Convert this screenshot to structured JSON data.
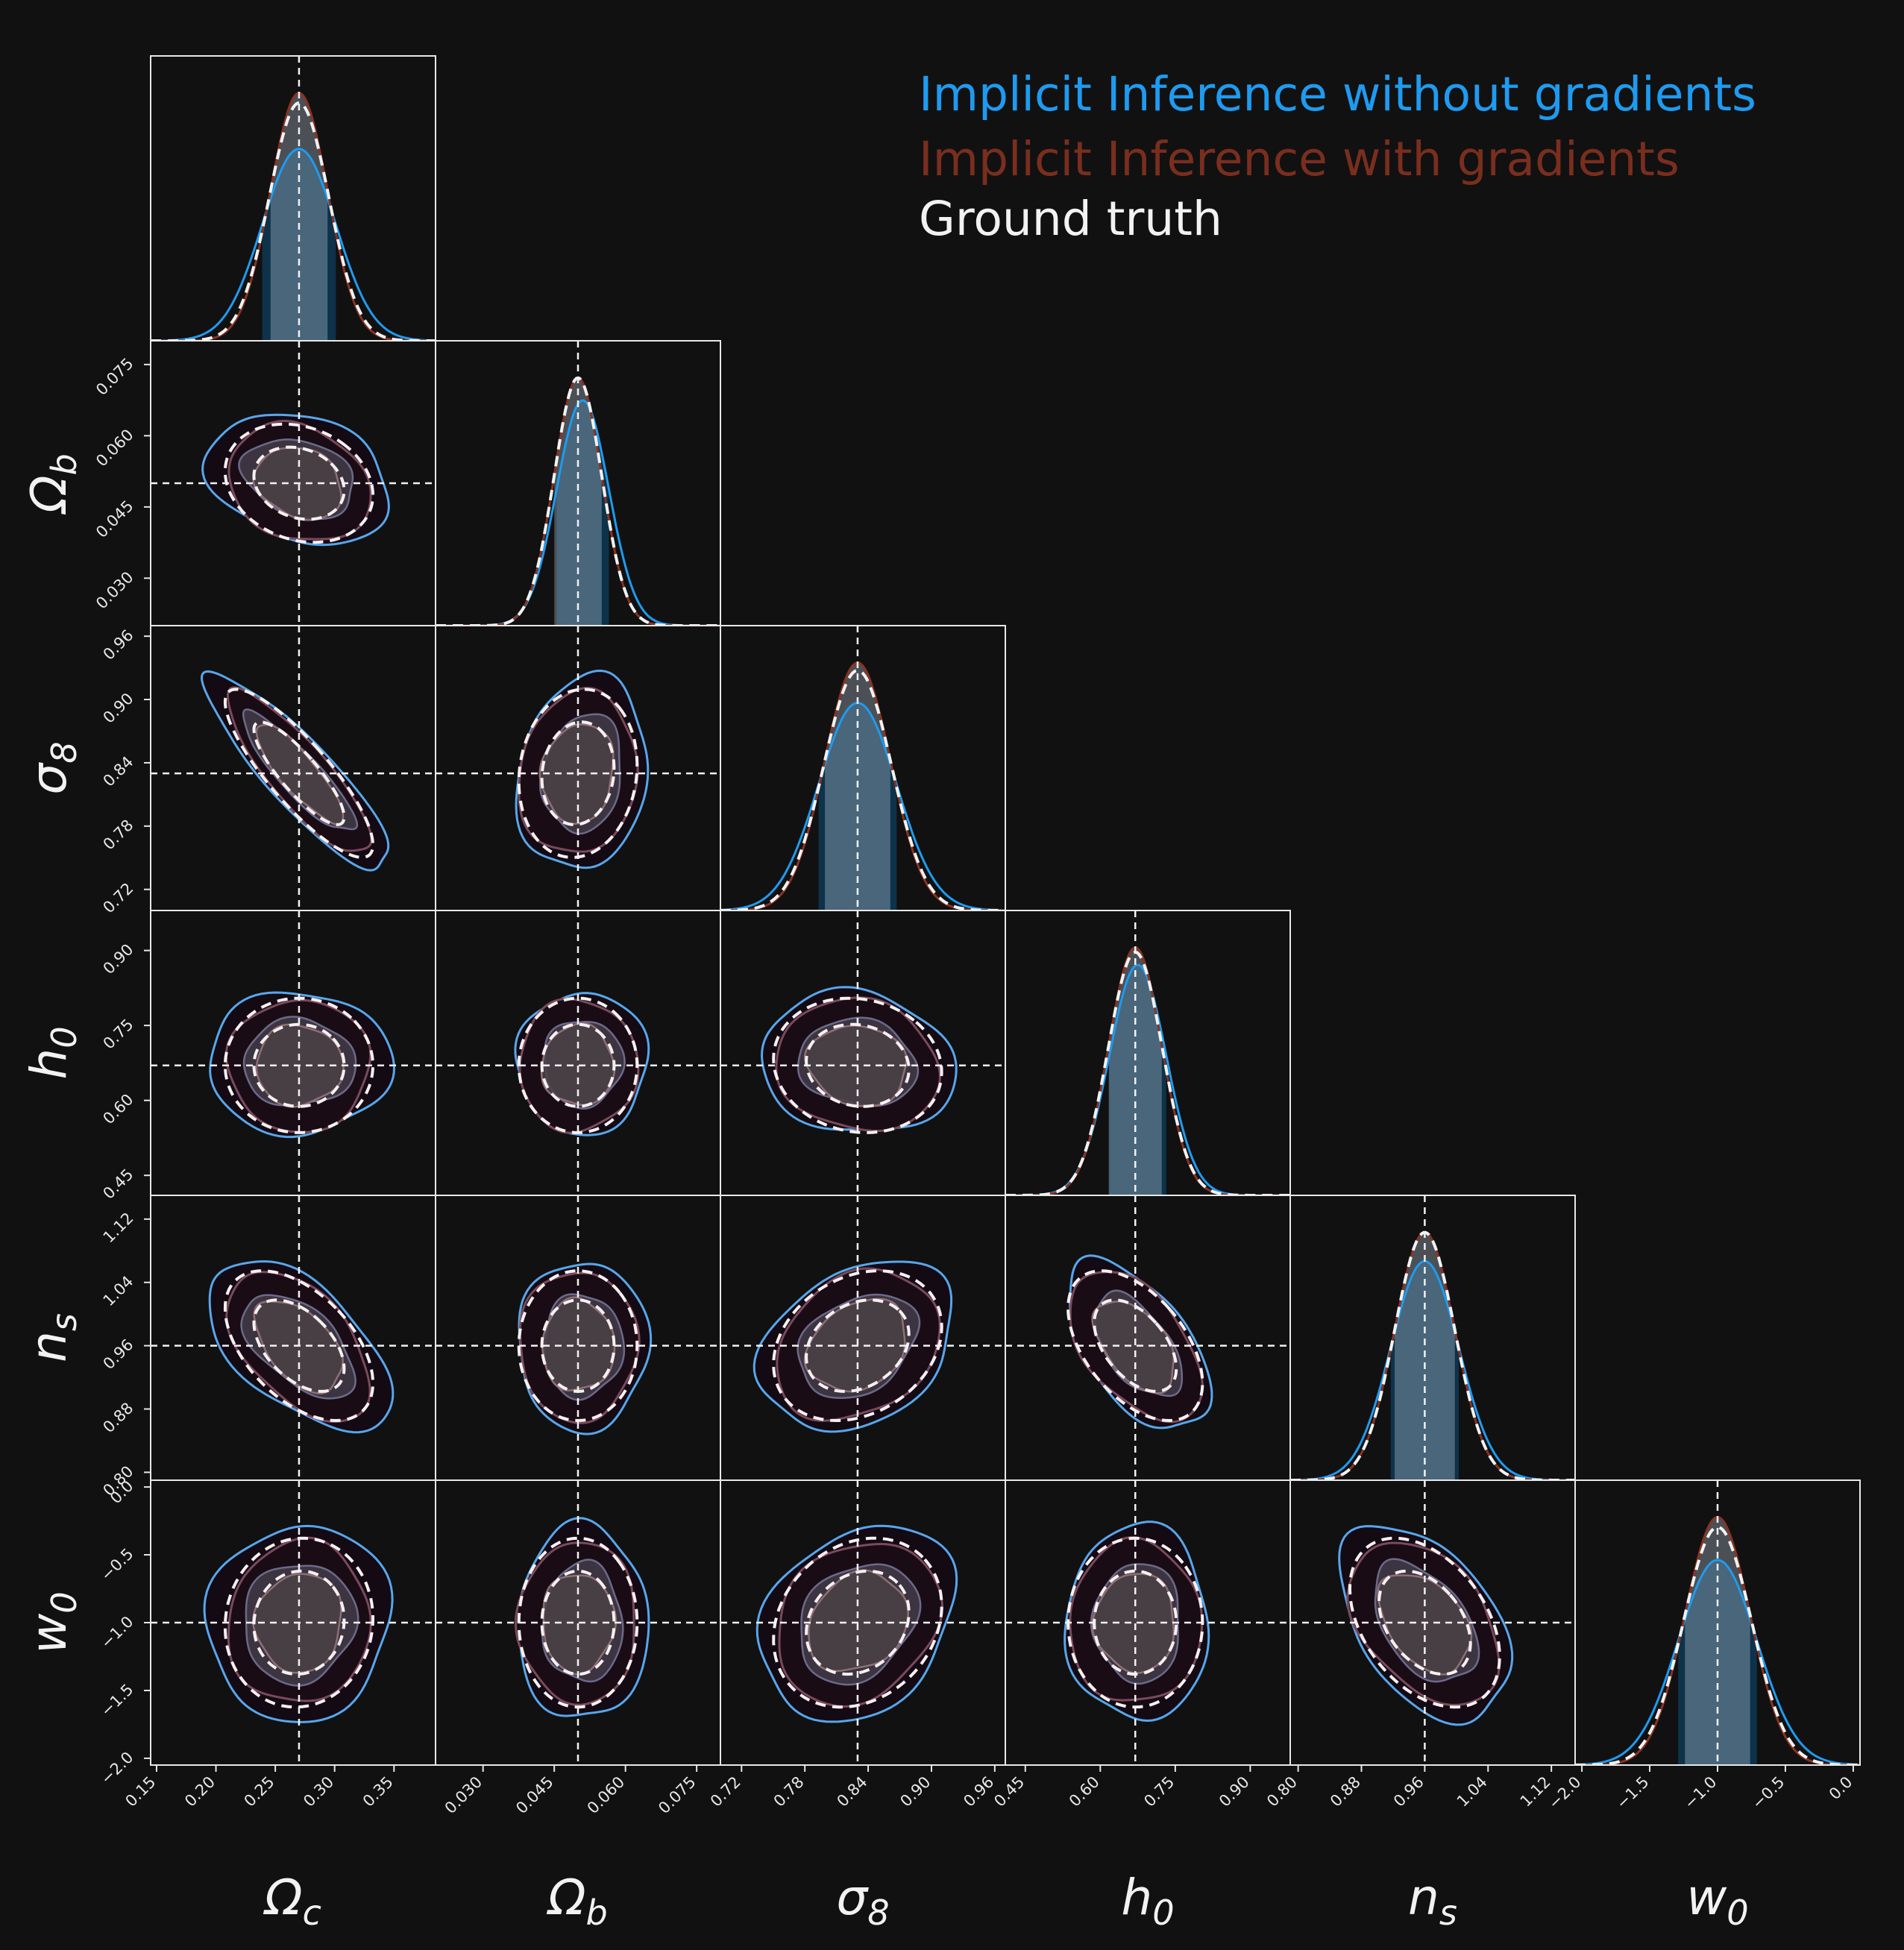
{
  "chart_data": {
    "type": "corner",
    "title": "",
    "legend": {
      "placement": "top-right",
      "entries": [
        {
          "label": "Implicit Inference without gradients",
          "color": "#1e9bf0"
        },
        {
          "label": "Implicit Inference with gradients",
          "color": "#7a2e1e"
        },
        {
          "label": "Ground truth",
          "color": "#f2f2f2"
        }
      ]
    },
    "parameters": [
      {
        "label_main": "Ω",
        "label_sub": "c",
        "truth": 0.27,
        "range": [
          0.145,
          0.385
        ],
        "ticks": [
          "0.15",
          "0.20",
          "0.25",
          "0.30",
          "0.35"
        ],
        "tick_values": [
          0.15,
          0.2,
          0.25,
          0.3,
          0.35
        ]
      },
      {
        "label_main": "Ω",
        "label_sub": "b",
        "truth": 0.05,
        "range": [
          0.02,
          0.08
        ],
        "ticks": [
          "0.030",
          "0.045",
          "0.060",
          "0.075"
        ],
        "tick_values": [
          0.03,
          0.045,
          0.06,
          0.075
        ]
      },
      {
        "label_main": "σ",
        "label_sub": "8",
        "truth": 0.83,
        "range": [
          0.7,
          0.97
        ],
        "ticks": [
          "0.72",
          "0.78",
          "0.84",
          "0.90",
          "0.96"
        ],
        "tick_values": [
          0.72,
          0.78,
          0.84,
          0.9,
          0.96
        ]
      },
      {
        "label_main": "h",
        "label_sub": "0",
        "truth": 0.67,
        "range": [
          0.41,
          0.98
        ],
        "ticks": [
          "0.45",
          "0.60",
          "0.75",
          "0.90"
        ],
        "tick_values": [
          0.45,
          0.6,
          0.75,
          0.9
        ]
      },
      {
        "label_main": "n",
        "label_sub": "s",
        "truth": 0.96,
        "range": [
          0.79,
          1.15
        ],
        "ticks": [
          "0.80",
          "0.88",
          "0.96",
          "1.04",
          "1.12"
        ],
        "tick_values": [
          0.8,
          0.88,
          0.96,
          1.04,
          1.12
        ]
      },
      {
        "label_main": "w",
        "label_sub": "0",
        "truth": -1.0,
        "range": [
          -2.05,
          0.05
        ],
        "ticks": [
          "−2.0",
          "−1.5",
          "−1.0",
          "−0.5",
          "0.0"
        ],
        "tick_values": [
          -2.0,
          -1.5,
          -1.0,
          -0.5,
          0.0
        ]
      }
    ],
    "series": [
      {
        "name": "Implicit Inference without gradients",
        "color": "#1e9bf0",
        "means": [
          0.27,
          0.051,
          0.83,
          0.675,
          0.96,
          -1.0
        ],
        "sigmas": [
          0.031,
          0.0055,
          0.037,
          0.057,
          0.043,
          0.29
        ],
        "correlations": [
          [
            0,
            1,
            -0.25
          ],
          [
            0,
            2,
            -0.88
          ],
          [
            0,
            3,
            0.0
          ],
          [
            0,
            4,
            -0.55
          ],
          [
            0,
            5,
            0.05
          ],
          [
            1,
            2,
            0.15
          ],
          [
            1,
            3,
            0.0
          ],
          [
            1,
            4,
            0.0
          ],
          [
            1,
            5,
            0.0
          ],
          [
            2,
            3,
            -0.1
          ],
          [
            2,
            4,
            0.3
          ],
          [
            2,
            5,
            0.25
          ],
          [
            3,
            4,
            -0.55
          ],
          [
            3,
            5,
            0.0
          ],
          [
            4,
            5,
            -0.45
          ]
        ]
      },
      {
        "name": "Implicit Inference with gradients",
        "color": "#7a2e1e",
        "means": [
          0.27,
          0.05,
          0.83,
          0.67,
          0.96,
          -1.0
        ],
        "sigmas": [
          0.024,
          0.005,
          0.031,
          0.053,
          0.038,
          0.24
        ],
        "correlations": [
          [
            0,
            1,
            -0.2
          ],
          [
            0,
            2,
            -0.85
          ],
          [
            0,
            3,
            0.0
          ],
          [
            0,
            4,
            -0.5
          ],
          [
            0,
            5,
            0.05
          ],
          [
            1,
            2,
            0.1
          ],
          [
            1,
            3,
            0.0
          ],
          [
            1,
            4,
            0.0
          ],
          [
            1,
            5,
            0.0
          ],
          [
            2,
            3,
            -0.1
          ],
          [
            2,
            4,
            0.25
          ],
          [
            2,
            5,
            0.2
          ],
          [
            3,
            4,
            -0.5
          ],
          [
            3,
            5,
            0.0
          ],
          [
            4,
            5,
            -0.4
          ]
        ]
      },
      {
        "name": "Ground truth",
        "color": "#f2f2f2",
        "means": [
          0.27,
          0.05,
          0.83,
          0.67,
          0.96,
          -1.0
        ],
        "sigmas": [
          0.025,
          0.005,
          0.032,
          0.054,
          0.038,
          0.25
        ],
        "correlations": [
          [
            0,
            1,
            -0.2
          ],
          [
            0,
            2,
            -0.85
          ],
          [
            0,
            3,
            0.0
          ],
          [
            0,
            4,
            -0.5
          ],
          [
            0,
            5,
            0.05
          ],
          [
            1,
            2,
            0.1
          ],
          [
            1,
            3,
            0.0
          ],
          [
            1,
            4,
            0.0
          ],
          [
            1,
            5,
            0.0
          ],
          [
            2,
            3,
            -0.1
          ],
          [
            2,
            4,
            0.25
          ],
          [
            2,
            5,
            0.2
          ],
          [
            3,
            4,
            -0.5
          ],
          [
            3,
            5,
            0.0
          ],
          [
            4,
            5,
            -0.4
          ]
        ]
      }
    ],
    "grid": false
  }
}
